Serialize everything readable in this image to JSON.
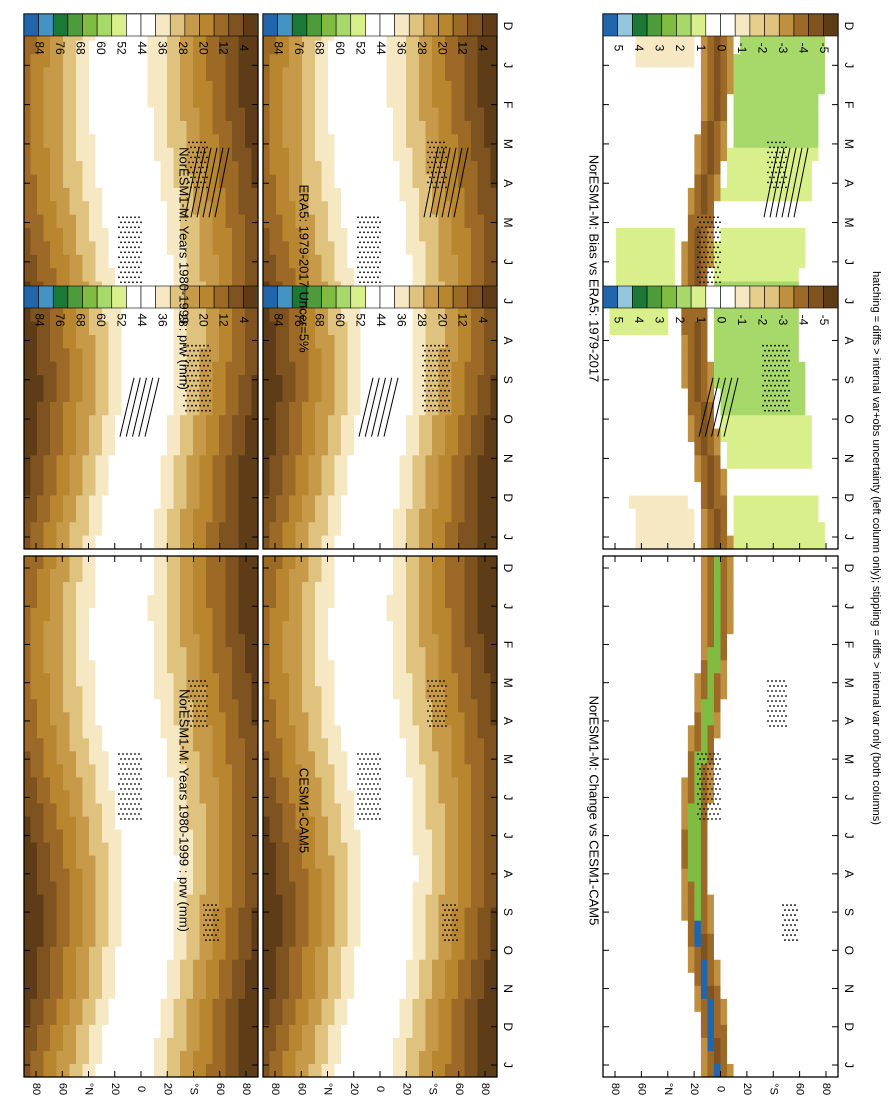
{
  "figure": {
    "footnote": "hatching = diffs > internal var+obs uncertainty (left column only); stippling = diffs > internal var only (both columns)"
  },
  "month_ticks": [
    "D",
    "J",
    "F",
    "M",
    "A",
    "M",
    "J",
    "J",
    "A",
    "S",
    "O",
    "N",
    "D",
    "J"
  ],
  "lat_ticks": [
    "80",
    "60",
    "°N",
    "20",
    "0",
    "20",
    "°S",
    "60",
    "80"
  ],
  "colorbars": {
    "abs": {
      "labels": [
        "84",
        "76",
        "68",
        "60",
        "52",
        "44",
        "36",
        "28",
        "20",
        "12",
        "4"
      ],
      "colors": [
        "#2166ac",
        "#4393c3",
        "#1b7837",
        "#4d9b3a",
        "#7fbc41",
        "#a6d96a",
        "#d9ef8b",
        "#ffffff",
        "#ffffff",
        "#f6e8c3",
        "#dfc27d",
        "#c79a4a",
        "#b8862f",
        "#9c6a26",
        "#7f5320",
        "#5e3c17"
      ]
    },
    "diff": {
      "labels": [
        "5",
        "4",
        "3",
        "2",
        "1",
        "0",
        "-1",
        "-2",
        "-3",
        "-4",
        "-5"
      ],
      "colors": [
        "#2166ac",
        "#92c5de",
        "#1b7837",
        "#4d9b3a",
        "#7fbc41",
        "#a6d96a",
        "#d9ef8b",
        "#ffffff",
        "#ffffff",
        "#f6e8c3",
        "#e6cf8a",
        "#dfc27d",
        "#bf9040",
        "#9c6a26",
        "#7f5320",
        "#5e3c17"
      ]
    }
  },
  "chart_data": [
    {
      "type": "heatmap",
      "title": "NorESM1-M: Years 1980-1999 : prw (mm)",
      "x": [
        "D",
        "J",
        "F",
        "M",
        "A",
        "M",
        "J",
        "J",
        "A",
        "S",
        "O",
        "N",
        "D",
        "J"
      ],
      "y": [
        "80",
        "60",
        "°N",
        "20",
        "0",
        "20",
        "°S",
        "60",
        "80"
      ],
      "colorbar": "abs",
      "hatching": true,
      "stippling": true
    },
    {
      "type": "heatmap",
      "title": "ERA5: 1979-2017 Uncer=5%",
      "x": [
        "D",
        "J",
        "F",
        "M",
        "A",
        "M",
        "J",
        "J",
        "A",
        "S",
        "O",
        "N",
        "D",
        "J"
      ],
      "y": [
        "80",
        "60",
        "°N",
        "20",
        "0",
        "20",
        "°S",
        "60",
        "80"
      ],
      "colorbar": "abs",
      "hatching": true,
      "stippling": true
    },
    {
      "type": "heatmap",
      "title": "NorESM1-M: Bias vs ERA5: 1979-2017",
      "x": [
        "D",
        "J",
        "F",
        "M",
        "A",
        "M",
        "J",
        "J",
        "A",
        "S",
        "O",
        "N",
        "D",
        "J"
      ],
      "y": [
        "80",
        "60",
        "°N",
        "20",
        "0",
        "20",
        "°S",
        "60",
        "80"
      ],
      "colorbar": "diff",
      "hatching": true,
      "stippling": true
    },
    {
      "type": "heatmap",
      "title": "NorESM1-M: Years 1980-1999 : prw (mm)",
      "x": [
        "D",
        "J",
        "F",
        "M",
        "A",
        "M",
        "J",
        "J",
        "A",
        "S",
        "O",
        "N",
        "D",
        "J"
      ],
      "y": [
        "80",
        "60",
        "°N",
        "20",
        "0",
        "20",
        "°S",
        "60",
        "80"
      ],
      "colorbar": "abs",
      "hatching": false,
      "stippling": true
    },
    {
      "type": "heatmap",
      "title": "CESM1-CAM5",
      "x": [
        "D",
        "J",
        "F",
        "M",
        "A",
        "M",
        "J",
        "J",
        "A",
        "S",
        "O",
        "N",
        "D",
        "J"
      ],
      "y": [
        "80",
        "60",
        "°N",
        "20",
        "0",
        "20",
        "°S",
        "60",
        "80"
      ],
      "colorbar": "abs",
      "hatching": false,
      "stippling": true
    },
    {
      "type": "heatmap",
      "title": "NorESM1-M: Change vs CESM1-CAM5",
      "x": [
        "D",
        "J",
        "F",
        "M",
        "A",
        "M",
        "J",
        "J",
        "A",
        "S",
        "O",
        "N",
        "D",
        "J"
      ],
      "y": [
        "80",
        "60",
        "°N",
        "20",
        "0",
        "20",
        "°S",
        "60",
        "80"
      ],
      "colorbar": "diff",
      "hatching": false,
      "stippling": true
    }
  ]
}
